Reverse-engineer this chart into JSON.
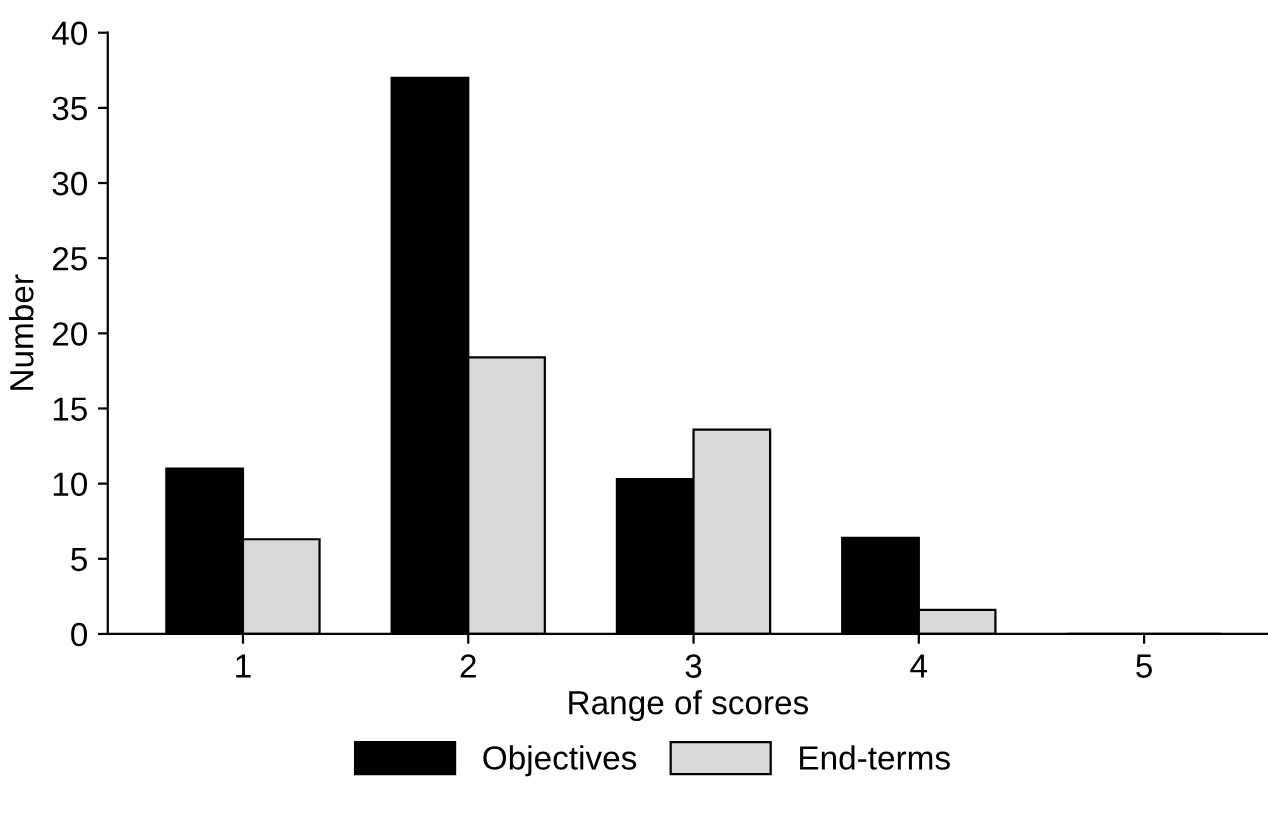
{
  "chart_data": {
    "type": "bar",
    "xlabel": "Range of scores",
    "ylabel": "Number",
    "categories": [
      "1",
      "2",
      "3",
      "4",
      "5"
    ],
    "series": [
      {
        "name": "Objectives",
        "color": "#000000",
        "values": [
          11,
          37,
          10.3,
          6.4,
          0
        ]
      },
      {
        "name": "End-terms",
        "color": "#d9d9d9",
        "values": [
          6.3,
          18.4,
          13.6,
          1.6,
          0
        ]
      }
    ],
    "ylim": [
      0,
      40
    ],
    "yticks": [
      0,
      5,
      10,
      15,
      20,
      25,
      30,
      35,
      40
    ],
    "grid": false,
    "legend": "bottom"
  }
}
